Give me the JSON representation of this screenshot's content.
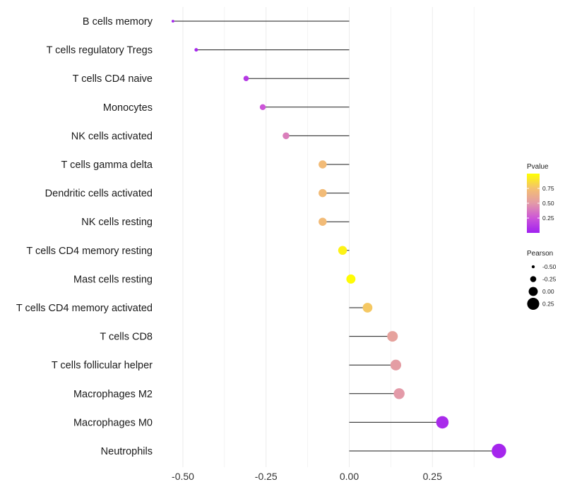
{
  "chart_data": {
    "type": "lollipop",
    "xlabel": "",
    "ylabel": "",
    "xlim": [
      -0.58,
      0.48
    ],
    "x_ticks": [
      -0.5,
      -0.25,
      0.0,
      0.25
    ],
    "x_tick_labels": [
      "-0.50",
      "-0.25",
      "0.00",
      "0.25"
    ],
    "categories": [
      "B cells memory",
      "T cells regulatory  Tregs",
      "T cells CD4 naive",
      "Monocytes",
      "NK cells activated",
      "T cells gamma delta",
      "Dendritic cells activated",
      "NK cells resting",
      "T cells CD4 memory resting",
      "Mast cells resting",
      "T cells CD4 memory activated",
      "T cells CD8",
      "T cells follicular helper",
      "Macrophages M2",
      "Macrophages M0",
      "Neutrophils"
    ],
    "pearson": [
      -0.53,
      -0.46,
      -0.31,
      -0.26,
      -0.19,
      -0.08,
      -0.08,
      -0.08,
      -0.02,
      0.005,
      0.055,
      0.13,
      0.14,
      0.15,
      0.28,
      0.45
    ],
    "pvalue": [
      0.02,
      0.04,
      0.12,
      0.25,
      0.4,
      0.72,
      0.72,
      0.72,
      0.95,
      0.99,
      0.78,
      0.55,
      0.52,
      0.5,
      0.05,
      0.03
    ],
    "color_legend": {
      "title": "Pvalue",
      "range": [
        0.0,
        1.0
      ],
      "ticks": [
        0.25,
        0.5,
        0.75
      ],
      "tick_labels": [
        "0.25",
        "0.50",
        "0.75"
      ],
      "colors": [
        "#a020f0",
        "#d060d0",
        "#e8a0a0",
        "#f5c060",
        "#ffff00"
      ]
    },
    "size_legend": {
      "title": "Pearson",
      "values": [
        -0.5,
        -0.25,
        0.0,
        0.25
      ],
      "labels": [
        "-0.50",
        "-0.25",
        "0.00",
        "0.25"
      ]
    },
    "grid": true,
    "legend_position": "right"
  }
}
